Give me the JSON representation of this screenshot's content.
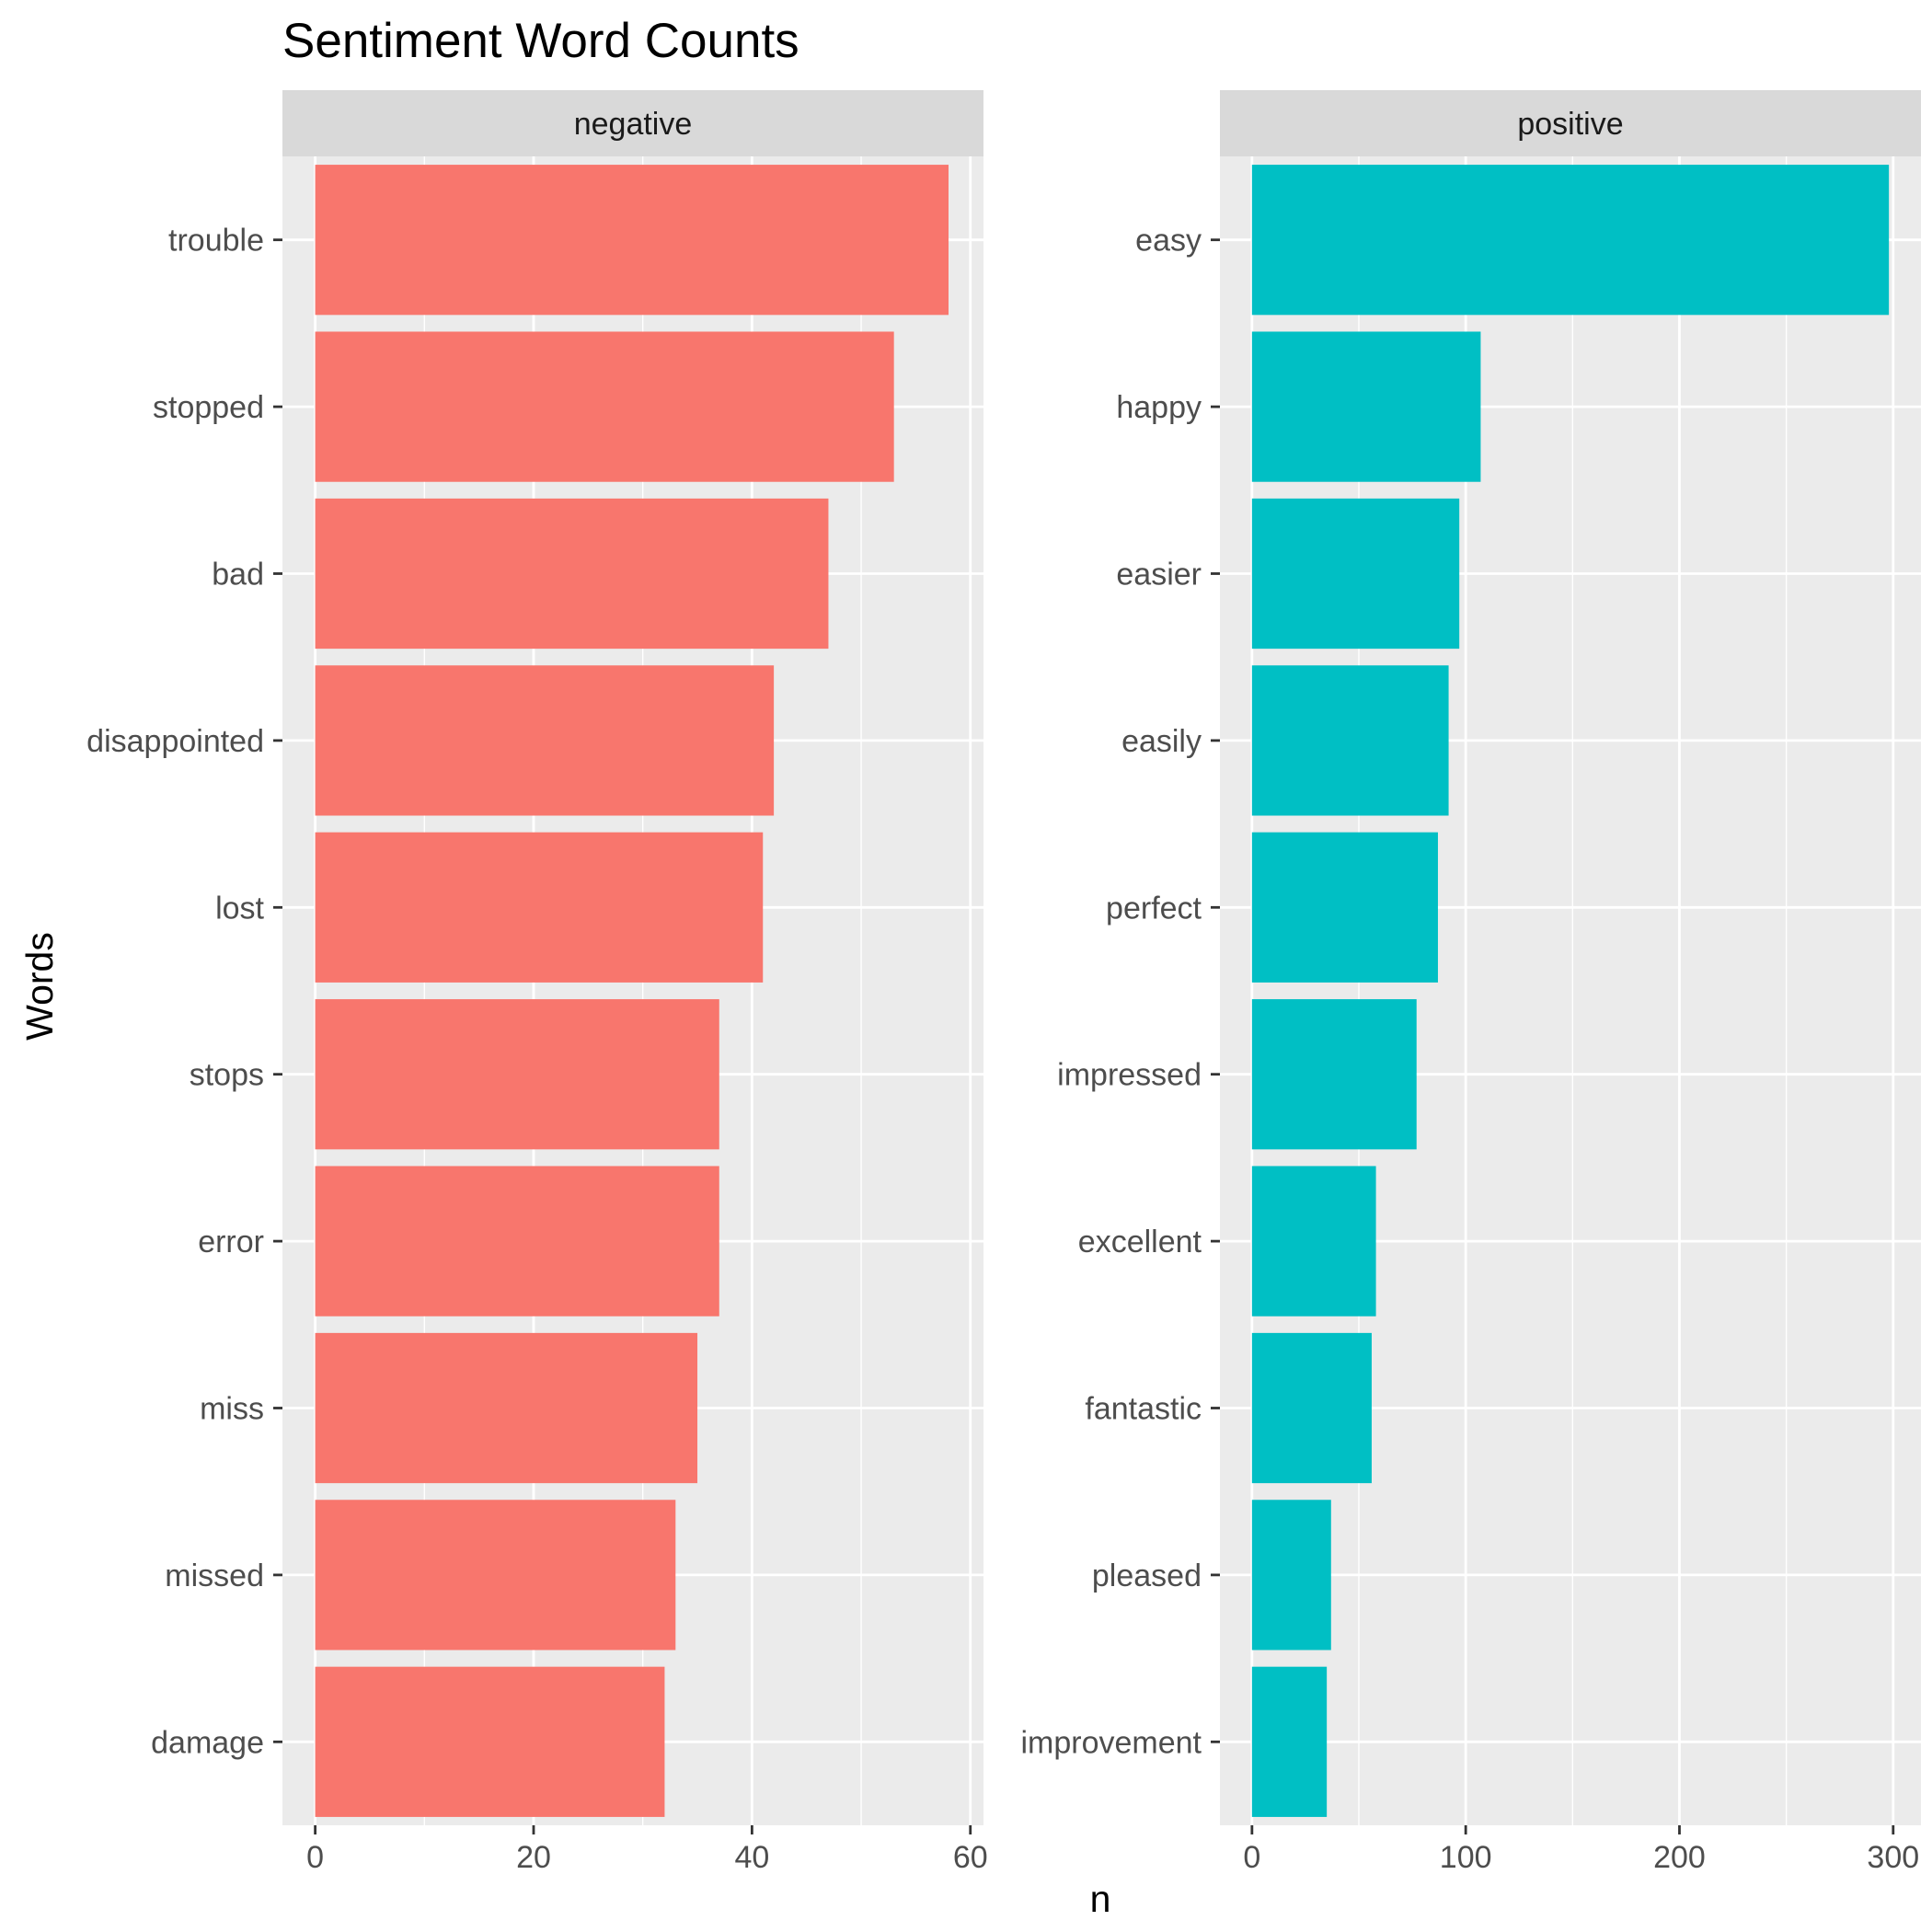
{
  "chart_data": {
    "type": "bar",
    "orientation": "horizontal",
    "title": "Sentiment Word Counts",
    "xlabel": "n",
    "ylabel": "Words",
    "colors": {
      "panel_bg": "#ebebeb",
      "strip_bg": "#d9d9d9",
      "grid": "#ffffff"
    },
    "facets": [
      {
        "name": "negative",
        "color": "#f8766d",
        "xlim": [
          -3,
          61.2
        ],
        "xticks": [
          0,
          20,
          40,
          60
        ],
        "categories": [
          "trouble",
          "stopped",
          "bad",
          "disappointed",
          "lost",
          "stops",
          "error",
          "miss",
          "missed",
          "damage"
        ],
        "values": [
          58,
          53,
          47,
          42,
          41,
          37,
          37,
          35,
          33,
          32
        ]
      },
      {
        "name": "positive",
        "color": "#00bfc4",
        "xlim": [
          -15,
          313
        ],
        "xticks": [
          0,
          100,
          200,
          300
        ],
        "categories": [
          "easy",
          "happy",
          "easier",
          "easily",
          "perfect",
          "impressed",
          "excellent",
          "fantastic",
          "pleased",
          "improvement"
        ],
        "values": [
          298,
          107,
          97,
          92,
          87,
          77,
          58,
          56,
          37,
          35
        ]
      }
    ]
  }
}
